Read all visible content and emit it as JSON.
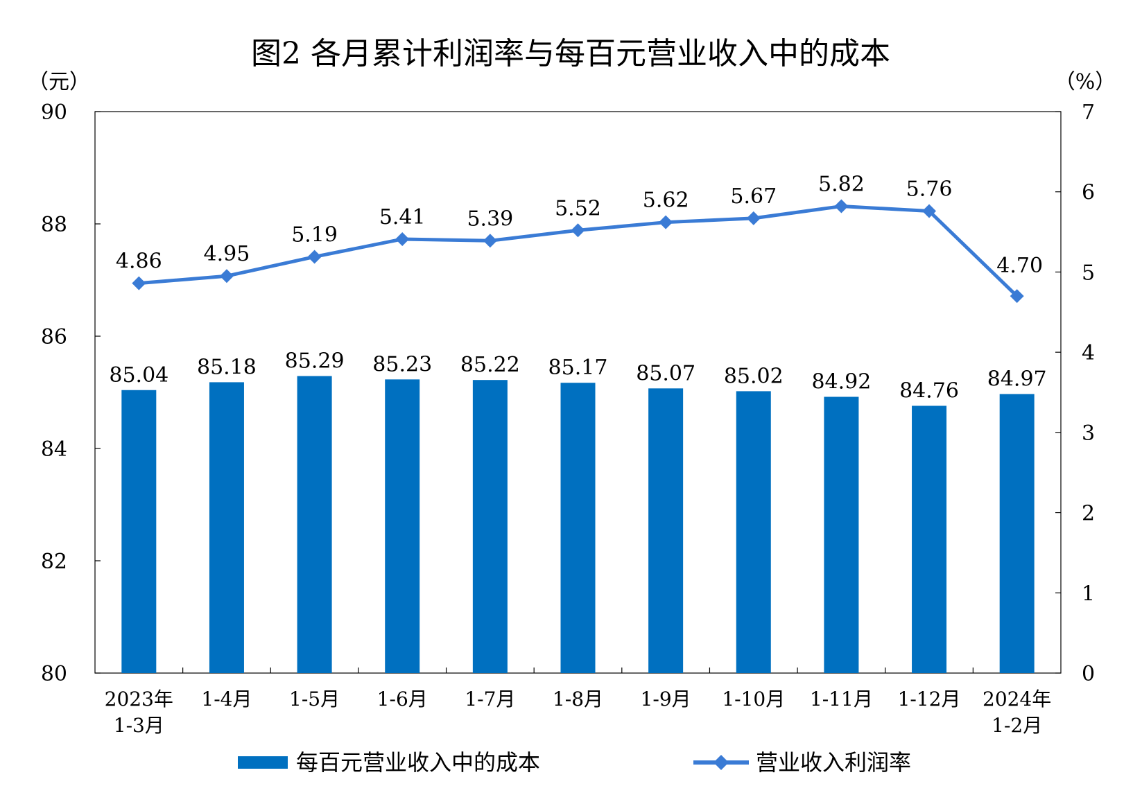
{
  "chart_data": {
    "type": "bar+line",
    "title": "图2  各月累计利润率与每百元营业收入中的成本",
    "left_axis_unit": "（元）",
    "right_axis_unit": "（%）",
    "left_ylim": [
      80,
      90
    ],
    "left_ticks": [
      "80",
      "82",
      "84",
      "86",
      "88",
      "90"
    ],
    "right_ylim": [
      0,
      7
    ],
    "right_ticks": [
      "0",
      "1",
      "2",
      "3",
      "4",
      "5",
      "6",
      "7"
    ],
    "categories": [
      [
        "2023年",
        "1-3月"
      ],
      [
        "1-4月"
      ],
      [
        "1-5月"
      ],
      [
        "1-6月"
      ],
      [
        "1-7月"
      ],
      [
        "1-8月"
      ],
      [
        "1-9月"
      ],
      [
        "1-10月"
      ],
      [
        "1-11月"
      ],
      [
        "1-12月"
      ],
      [
        "2024年",
        "1-2月"
      ]
    ],
    "series": [
      {
        "name": "每百元营业收入中的成本",
        "type": "bar",
        "axis": "left",
        "color": "#0070C0",
        "values": [
          85.04,
          85.18,
          85.29,
          85.23,
          85.22,
          85.17,
          85.07,
          85.02,
          84.92,
          84.76,
          84.97
        ],
        "labels": [
          "85.04",
          "85.18",
          "85.29",
          "85.23",
          "85.22",
          "85.17",
          "85.07",
          "85.02",
          "84.92",
          "84.76",
          "84.97"
        ]
      },
      {
        "name": "营业收入利润率",
        "type": "line",
        "axis": "right",
        "color": "#3A7BD5",
        "values": [
          4.86,
          4.95,
          5.19,
          5.41,
          5.39,
          5.52,
          5.62,
          5.67,
          5.82,
          5.76,
          4.7
        ],
        "labels": [
          "4.86",
          "4.95",
          "5.19",
          "5.41",
          "5.39",
          "5.52",
          "5.62",
          "5.67",
          "5.82",
          "5.76",
          "4.70"
        ]
      }
    ],
    "legend_position": "bottom"
  }
}
